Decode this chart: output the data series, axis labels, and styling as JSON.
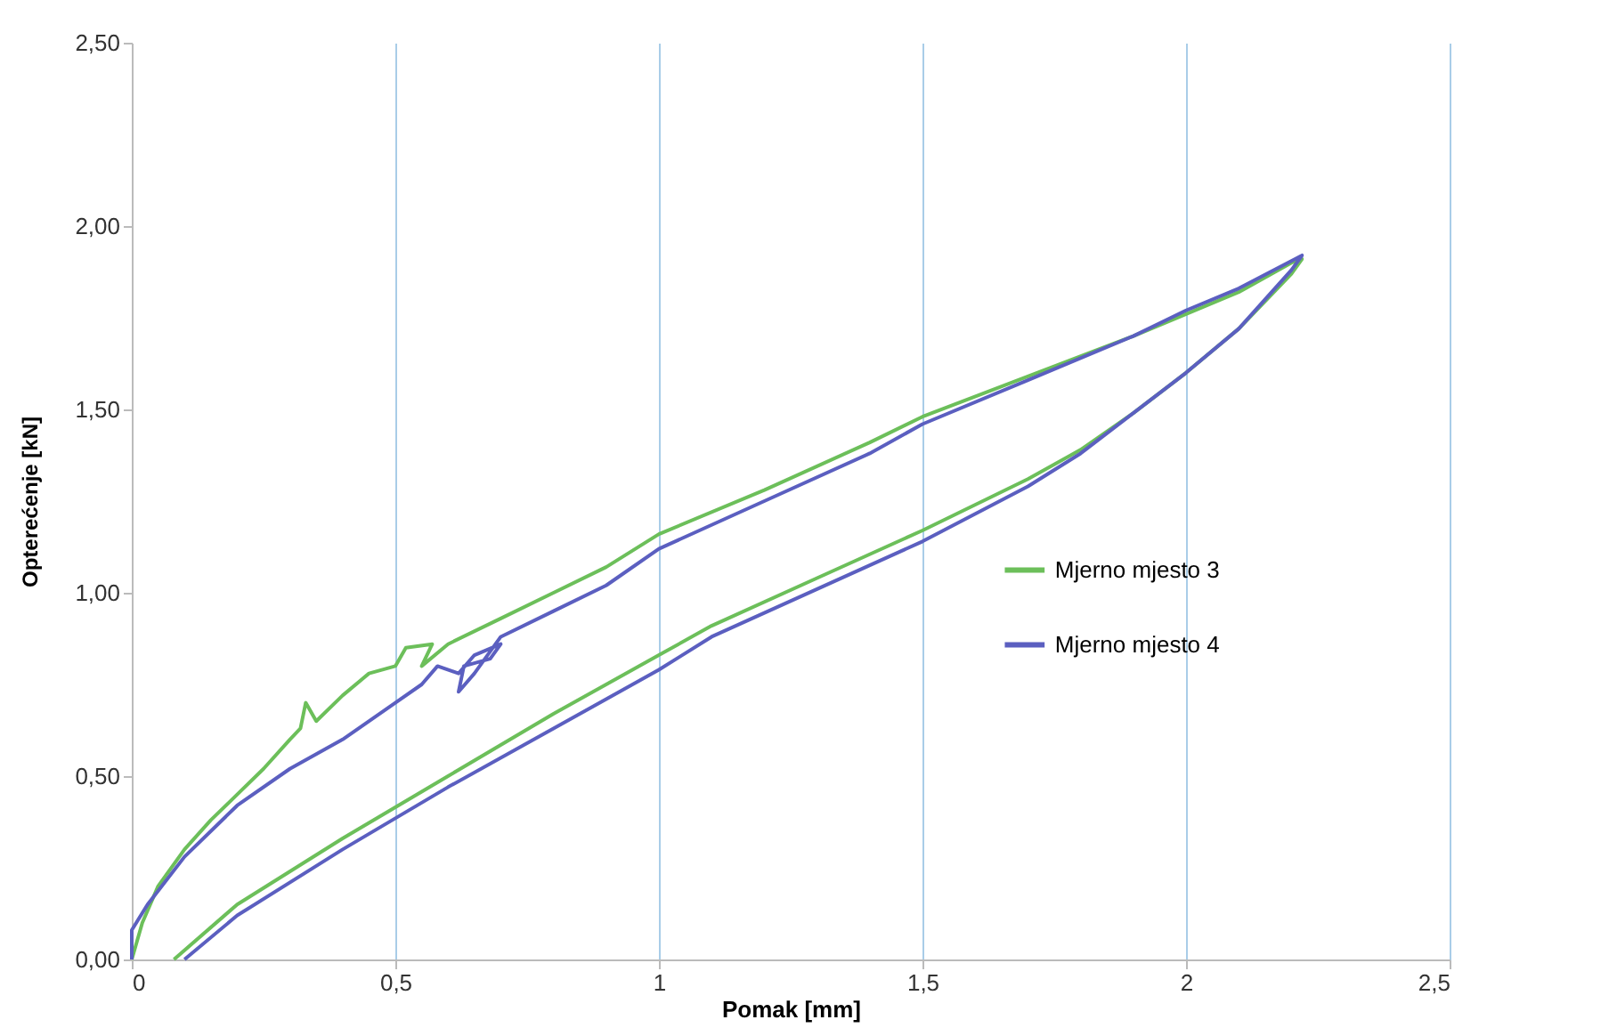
{
  "chart_data": {
    "type": "line",
    "xlabel": "Pomak [mm]",
    "ylabel": "Opterećenje [kN]",
    "xlim": [
      0,
      2.5
    ],
    "xticks": [
      0,
      {
        "value": 0.5,
        "label": "0,5"
      },
      1,
      {
        "value": 1.5,
        "label": "1,5"
      },
      2,
      {
        "value": 2.5,
        "label": "2,5"
      }
    ],
    "ylim": [
      0,
      2.5
    ],
    "yticks": [
      {
        "value": 0,
        "label": "0,00"
      },
      {
        "value": 0.5,
        "label": "0,50"
      },
      {
        "value": 1,
        "label": "1,00"
      },
      {
        "value": 1.5,
        "label": "1,50"
      },
      {
        "value": 2,
        "label": "2,00"
      },
      {
        "value": 2.5,
        "label": "2,50"
      }
    ],
    "grid": "x",
    "legend": "right",
    "line_style": "solid",
    "marker": "none",
    "series": [
      {
        "name": "Mjerno mjesto 3",
        "color": "#6cbf5a",
        "x": [
          0,
          0.02,
          0.05,
          0.1,
          0.15,
          0.2,
          0.25,
          0.3,
          0.32,
          0.33,
          0.35,
          0.4,
          0.45,
          0.5,
          0.52,
          0.57,
          0.55,
          0.6,
          0.7,
          0.8,
          0.9,
          1.0,
          1.2,
          1.4,
          1.5,
          1.7,
          1.9,
          2.0,
          2.1,
          2.2,
          2.22,
          2.2,
          2.1,
          2.0,
          1.9,
          1.8,
          1.7,
          1.5,
          1.3,
          1.1,
          1.0,
          0.8,
          0.6,
          0.4,
          0.2,
          0.08
        ],
        "values": [
          0,
          0.1,
          0.2,
          0.3,
          0.38,
          0.45,
          0.52,
          0.6,
          0.63,
          0.7,
          0.65,
          0.72,
          0.78,
          0.8,
          0.85,
          0.86,
          0.8,
          0.86,
          0.93,
          1.0,
          1.07,
          1.16,
          1.28,
          1.41,
          1.48,
          1.59,
          1.7,
          1.76,
          1.82,
          1.9,
          1.91,
          1.87,
          1.72,
          1.6,
          1.49,
          1.39,
          1.31,
          1.17,
          1.04,
          0.91,
          0.83,
          0.67,
          0.5,
          0.33,
          0.15,
          0
        ]
      },
      {
        "name": "Mjerno mjesto 4",
        "color": "#5b5fc0",
        "x": [
          0,
          0,
          0.03,
          0.1,
          0.2,
          0.3,
          0.4,
          0.5,
          0.55,
          0.58,
          0.62,
          0.65,
          0.7,
          0.68,
          0.63,
          0.62,
          0.65,
          0.7,
          0.8,
          0.9,
          1.0,
          1.2,
          1.4,
          1.5,
          1.7,
          1.9,
          2.0,
          2.1,
          2.22,
          2.2,
          2.1,
          2.0,
          1.9,
          1.8,
          1.7,
          1.5,
          1.3,
          1.1,
          1.0,
          0.8,
          0.6,
          0.4,
          0.2,
          0.1
        ],
        "values": [
          0,
          0.08,
          0.15,
          0.28,
          0.42,
          0.52,
          0.6,
          0.7,
          0.75,
          0.8,
          0.78,
          0.83,
          0.86,
          0.82,
          0.8,
          0.73,
          0.78,
          0.88,
          0.95,
          1.02,
          1.12,
          1.25,
          1.38,
          1.46,
          1.58,
          1.7,
          1.77,
          1.83,
          1.92,
          1.88,
          1.72,
          1.6,
          1.49,
          1.38,
          1.29,
          1.14,
          1.01,
          0.88,
          0.79,
          0.63,
          0.47,
          0.3,
          0.12,
          0
        ]
      }
    ]
  }
}
